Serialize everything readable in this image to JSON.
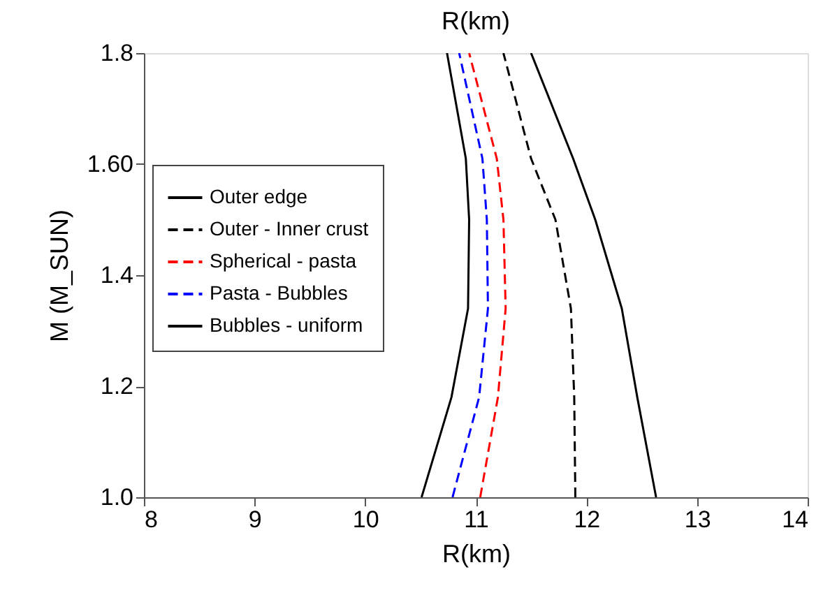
{
  "chart_data": {
    "type": "line",
    "title": "R(km)",
    "xlabel": "R(km)",
    "ylabel": "M (M_SUN)",
    "xlim": [
      8,
      14
    ],
    "xticks": [
      8,
      9,
      10,
      11,
      12,
      13,
      14
    ],
    "ylim": [
      1.0,
      1.8
    ],
    "yticks": [
      {
        "value": 1.0,
        "label": "1.0"
      },
      {
        "value": 1.2,
        "label": "1.2"
      },
      {
        "value": 1.4,
        "label": "1.4"
      },
      {
        "value": 1.6,
        "label": "1.60"
      },
      {
        "value": 1.8,
        "label": "1.8"
      }
    ],
    "grid": false,
    "legend": "left",
    "marker": "none",
    "series": [
      {
        "name": "Outer edge",
        "color": "#000000",
        "line_style": "solid",
        "x": [
          12.63,
          12.46,
          12.32,
          12.08,
          11.88,
          11.5
        ],
        "values": [
          1.0,
          1.18,
          1.34,
          1.5,
          1.61,
          1.8
        ]
      },
      {
        "name": "Outer - Inner crust",
        "color": "#000000",
        "line_style": "dashed",
        "x": [
          11.9,
          11.89,
          11.86,
          11.72,
          11.5,
          11.25
        ],
        "values": [
          1.0,
          1.18,
          1.34,
          1.5,
          1.61,
          1.8
        ]
      },
      {
        "name": "Spherical - pasta",
        "color": "#ff0000",
        "line_style": "dashed",
        "x": [
          11.04,
          11.2,
          11.27,
          11.25,
          11.19,
          10.94
        ],
        "values": [
          1.0,
          1.18,
          1.34,
          1.5,
          1.61,
          1.8
        ]
      },
      {
        "name": "Pasta - Bubbles",
        "color": "#0000ff",
        "line_style": "dashed",
        "x": [
          10.79,
          11.03,
          11.11,
          11.1,
          11.06,
          10.85
        ],
        "values": [
          1.0,
          1.18,
          1.34,
          1.5,
          1.61,
          1.8
        ]
      },
      {
        "name": "Bubbles - uniform",
        "color": "#000000",
        "line_style": "solid",
        "x": [
          10.51,
          10.78,
          10.93,
          10.94,
          10.91,
          10.74
        ],
        "values": [
          1.0,
          1.18,
          1.34,
          1.5,
          1.61,
          1.8
        ]
      }
    ]
  }
}
